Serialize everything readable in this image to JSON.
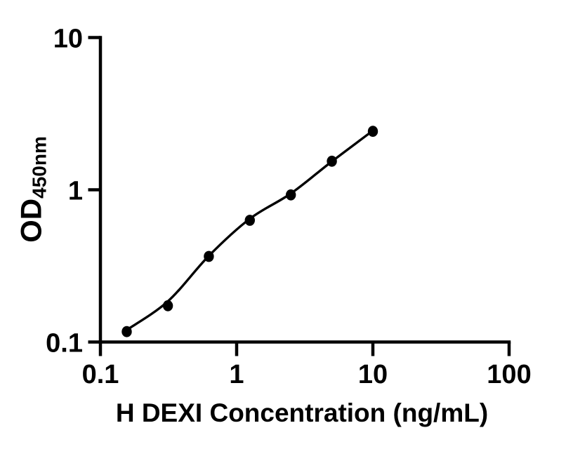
{
  "figure": {
    "background": "#ffffff",
    "ink": "#000000"
  },
  "chart_data": {
    "type": "scatter",
    "description": "ELISA standard curve with fitted line on log-log axes",
    "title": "",
    "xlabel": "H DEXI Concentration (ng/mL)",
    "ylabel_main": "OD",
    "ylabel_sub": "450nm",
    "x_scale": "log10",
    "y_scale": "log10",
    "xlim": [
      0.1,
      100
    ],
    "ylim": [
      0.1,
      10
    ],
    "grid": false,
    "legend": false,
    "x_ticks": [
      {
        "value": 0.1,
        "label": "0.1"
      },
      {
        "value": 1,
        "label": "1"
      },
      {
        "value": 10,
        "label": "10"
      },
      {
        "value": 100,
        "label": "100"
      }
    ],
    "y_ticks": [
      {
        "value": 0.1,
        "label": "0.1"
      },
      {
        "value": 1,
        "label": "1"
      },
      {
        "value": 10,
        "label": "10"
      }
    ],
    "series": [
      {
        "name": "standard-curve",
        "marker": "filled-circle",
        "color": "#000000",
        "points": [
          {
            "x": 0.156,
            "od": 0.117
          },
          {
            "x": 0.313,
            "od": 0.173
          },
          {
            "x": 0.625,
            "od": 0.365
          },
          {
            "x": 1.25,
            "od": 0.63
          },
          {
            "x": 2.5,
            "od": 0.925
          },
          {
            "x": 5,
            "od": 1.54
          },
          {
            "x": 10,
            "od": 2.42
          }
        ],
        "fit_line_od": [
          0.12,
          0.185,
          0.368,
          0.645,
          0.945,
          1.535,
          2.445
        ]
      }
    ]
  }
}
